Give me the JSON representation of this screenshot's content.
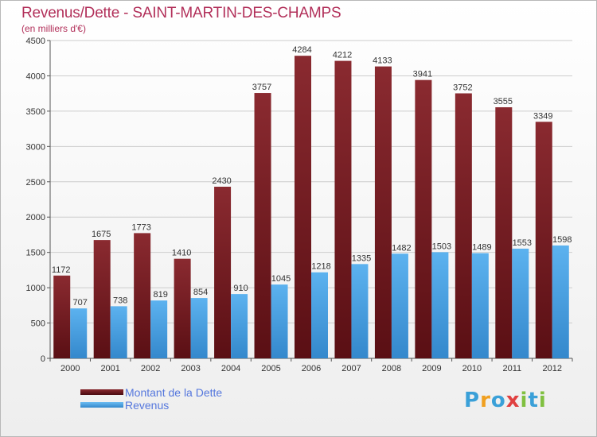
{
  "title": "Revenus/Dette - SAINT-MARTIN-DES-CHAMPS",
  "subtitle": "(en milliers d'€)",
  "colors": {
    "dette": "#7a1a22",
    "revenus": "#4ba3e6",
    "grid": "#cccccc",
    "axis": "#555555",
    "title": "#b2305a",
    "legend_text": "#5577dd"
  },
  "legend": {
    "dette_label": "Montant de la Dette",
    "revenus_label": "Revenus"
  },
  "logo": {
    "letters": [
      "P",
      "r",
      "o",
      "x",
      "i",
      "t",
      "i"
    ],
    "colors": [
      "#3aa0d8",
      "#f0a020",
      "#3aa0d8",
      "#e04040",
      "#80c040",
      "#3aa0d8",
      "#80c040"
    ]
  },
  "chart_data": {
    "type": "bar",
    "categories": [
      "2000",
      "2001",
      "2002",
      "2003",
      "2004",
      "2005",
      "2006",
      "2007",
      "2008",
      "2009",
      "2010",
      "2011",
      "2012"
    ],
    "series": [
      {
        "name": "Montant de la Dette",
        "values": [
          1172,
          1675,
          1773,
          1410,
          2430,
          3757,
          4284,
          4212,
          4133,
          3941,
          3752,
          3555,
          3349
        ]
      },
      {
        "name": "Revenus",
        "values": [
          707,
          738,
          819,
          854,
          910,
          1045,
          1218,
          1335,
          1482,
          1503,
          1489,
          1553,
          1598
        ]
      }
    ],
    "title": "Revenus/Dette - SAINT-MARTIN-DES-CHAMPS",
    "subtitle": "(en milliers d'€)",
    "xlabel": "",
    "ylabel": "",
    "ylim": [
      0,
      4500
    ],
    "yticks": [
      0,
      500,
      1000,
      1500,
      2000,
      2500,
      3000,
      3500,
      4000,
      4500
    ],
    "grid": true,
    "legend_position": "bottom-left"
  }
}
